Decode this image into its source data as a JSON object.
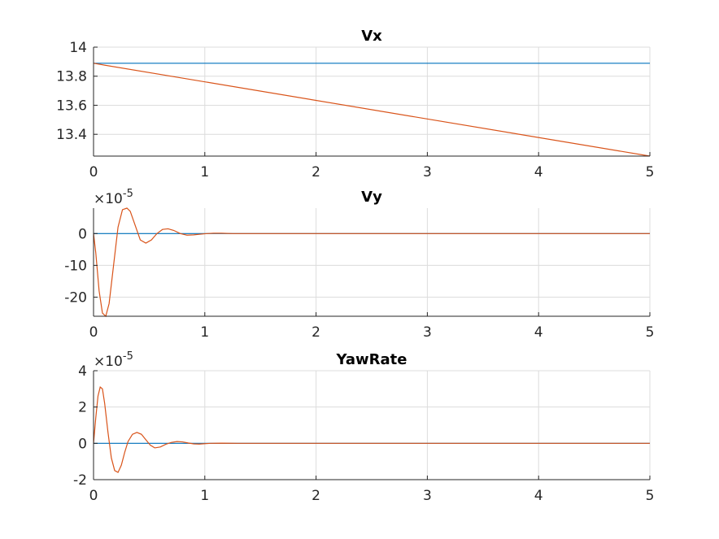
{
  "chart_data": [
    {
      "type": "line",
      "title": "Vx",
      "xlim": [
        0,
        5
      ],
      "ylim": [
        13.25,
        14
      ],
      "x_ticks": [
        0,
        1,
        2,
        3,
        4,
        5
      ],
      "y_ticks": [
        13.4,
        13.6,
        13.8,
        14
      ],
      "y_tick_labels": [
        "13.4",
        "13.6",
        "13.8",
        "14"
      ],
      "exponent_label": "",
      "grid": true,
      "series": [
        {
          "color": "#0072BD",
          "x": [
            0,
            5
          ],
          "y": [
            13.889,
            13.889
          ]
        },
        {
          "color": "#D95319",
          "x": [
            0,
            5
          ],
          "y": [
            13.889,
            13.25
          ]
        }
      ]
    },
    {
      "type": "line",
      "title": "Vy",
      "xlim": [
        0,
        5
      ],
      "ylim": [
        -26,
        8
      ],
      "x_ticks": [
        0,
        1,
        2,
        3,
        4,
        5
      ],
      "y_ticks": [
        -20,
        -10,
        0
      ],
      "y_tick_labels": [
        "-20",
        "-10",
        "0"
      ],
      "exponent_label": "×10-5",
      "grid": true,
      "series": [
        {
          "color": "#0072BD",
          "x": [
            0,
            5
          ],
          "y": [
            0,
            0
          ]
        },
        {
          "color": "#D95319",
          "x": [
            0,
            0.02,
            0.05,
            0.08,
            0.11,
            0.14,
            0.18,
            0.22,
            0.26,
            0.3,
            0.33,
            0.37,
            0.42,
            0.47,
            0.52,
            0.57,
            0.62,
            0.67,
            0.72,
            0.78,
            0.84,
            0.9,
            0.96,
            1.02,
            1.08,
            1.15,
            1.25,
            1.4,
            1.6,
            2.0,
            3.0,
            5.0
          ],
          "y": [
            0,
            -6,
            -18,
            -25,
            -26,
            -22,
            -10,
            2,
            7.5,
            8,
            7,
            3,
            -2,
            -3,
            -2,
            0,
            1.3,
            1.5,
            1,
            0,
            -0.5,
            -0.4,
            -0.2,
            0,
            0.1,
            0.1,
            0,
            0,
            0,
            0,
            0,
            0
          ]
        }
      ]
    },
    {
      "type": "line",
      "title": "YawRate",
      "xlim": [
        0,
        5
      ],
      "ylim": [
        -2,
        4
      ],
      "x_ticks": [
        0,
        1,
        2,
        3,
        4,
        5
      ],
      "y_ticks": [
        -2,
        0,
        2,
        4
      ],
      "y_tick_labels": [
        "-2",
        "0",
        "2",
        "4"
      ],
      "exponent_label": "×10-5",
      "grid": true,
      "series": [
        {
          "color": "#0072BD",
          "x": [
            0,
            5
          ],
          "y": [
            0,
            0
          ]
        },
        {
          "color": "#D95319",
          "x": [
            0,
            0.02,
            0.04,
            0.06,
            0.08,
            0.1,
            0.13,
            0.16,
            0.19,
            0.22,
            0.25,
            0.28,
            0.31,
            0.35,
            0.39,
            0.43,
            0.47,
            0.51,
            0.55,
            0.6,
            0.65,
            0.7,
            0.75,
            0.8,
            0.85,
            0.9,
            0.95,
            1.0,
            1.05,
            1.15,
            1.3,
            1.6,
            2.0,
            3.0,
            5.0
          ],
          "y": [
            0,
            1.4,
            2.6,
            3.1,
            3.0,
            2.2,
            0.6,
            -0.8,
            -1.5,
            -1.6,
            -1.2,
            -0.5,
            0.1,
            0.5,
            0.6,
            0.5,
            0.2,
            -0.1,
            -0.25,
            -0.2,
            -0.05,
            0.05,
            0.1,
            0.08,
            0.02,
            -0.03,
            -0.04,
            -0.02,
            0,
            0.01,
            0,
            0,
            0,
            0,
            0
          ]
        }
      ]
    }
  ]
}
